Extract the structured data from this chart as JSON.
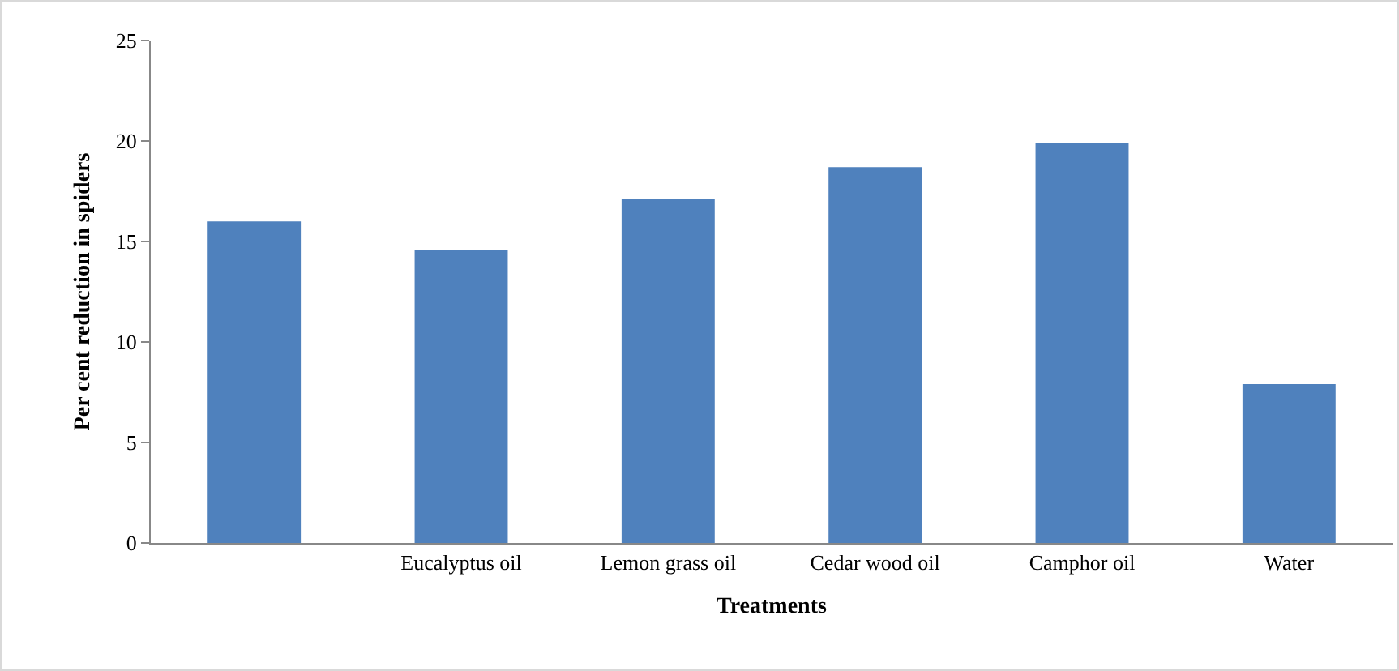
{
  "chart_data": {
    "type": "bar",
    "xlabel": "Treatments",
    "ylabel": "Per cent reduction in spiders",
    "categories": [
      null,
      "Eucalyptus oil",
      "Lemon grass oil",
      "Cedar wood oil",
      "Camphor oil",
      "Water"
    ],
    "values": [
      16.0,
      14.6,
      17.1,
      18.7,
      19.9,
      7.9
    ],
    "color": "#4f81bd",
    "ylim": [
      0,
      25
    ],
    "yticks": [
      0,
      5,
      10,
      15,
      20,
      25
    ],
    "grid": false,
    "legend": false
  }
}
